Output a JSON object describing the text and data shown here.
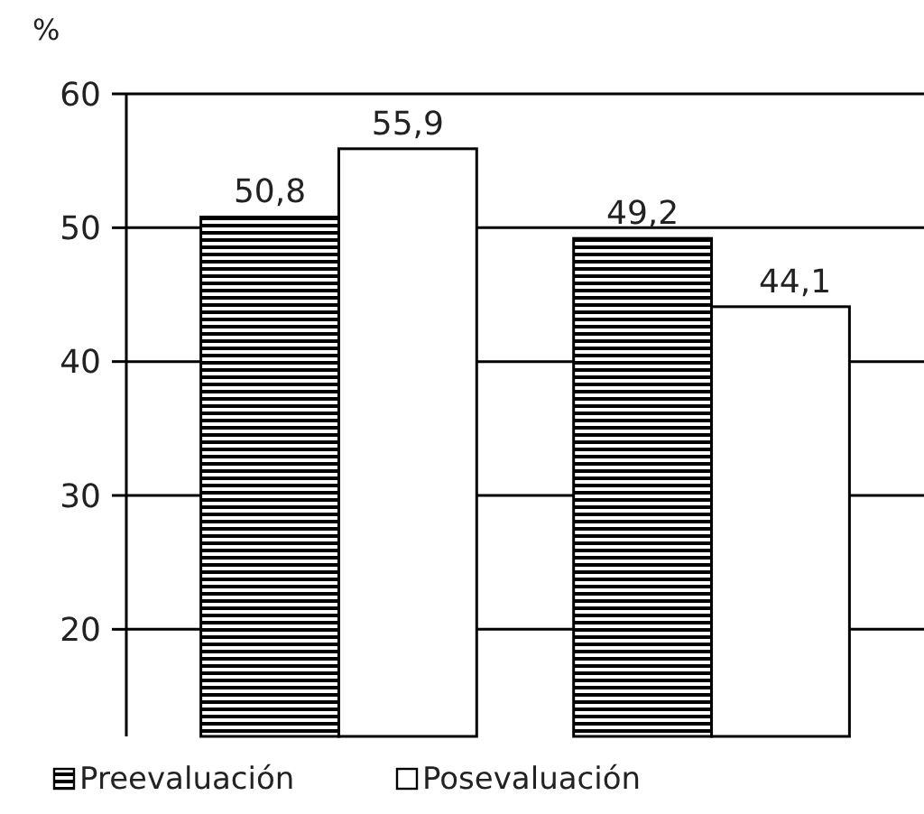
{
  "chart_data": {
    "type": "bar",
    "ylabel": "%",
    "categories": [
      null,
      null
    ],
    "series": [
      {
        "name": "Preevaluación",
        "color": "#000000",
        "values": [
          50.8,
          49.2
        ],
        "value_labels": [
          "50,8",
          "49,2"
        ]
      },
      {
        "name": "Posevaluación",
        "color": "#ffffff",
        "values": [
          55.9,
          44.1
        ],
        "value_labels": [
          "55,9",
          "44,1"
        ]
      }
    ],
    "ylim": [
      12,
      60
    ],
    "yticks": [
      20,
      30,
      40,
      50,
      60
    ],
    "grid": "y",
    "legend": "bottom"
  }
}
